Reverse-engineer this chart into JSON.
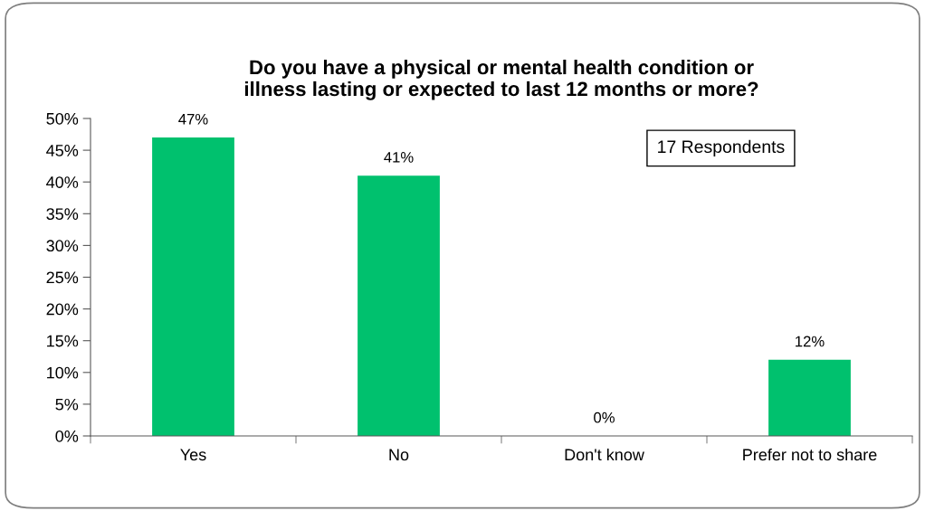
{
  "chart_data": {
    "type": "bar",
    "title": "Do you have a physical or mental health condition or\nillness lasting or expected to last 12 months or more?",
    "categories": [
      "Yes",
      "No",
      "Don't know",
      "Prefer not to share"
    ],
    "values": [
      47,
      41,
      0,
      12
    ],
    "value_labels": [
      "47%",
      "41%",
      "0%",
      "12%"
    ],
    "color": "#00c16e",
    "ylim": [
      0,
      50
    ],
    "yticks": [
      {
        "value": 0,
        "label": "0%"
      },
      {
        "value": 5,
        "label": "5%"
      },
      {
        "value": 10,
        "label": "10%"
      },
      {
        "value": 15,
        "label": "15%"
      },
      {
        "value": 20,
        "label": "20%"
      },
      {
        "value": 25,
        "label": "25%"
      },
      {
        "value": 30,
        "label": "30%"
      },
      {
        "value": 35,
        "label": "35%"
      },
      {
        "value": 40,
        "label": "40%"
      },
      {
        "value": 45,
        "label": "45%"
      },
      {
        "value": 50,
        "label": "50%"
      }
    ],
    "annotations": [
      "17 Respondents"
    ],
    "grid": false,
    "legend": false
  }
}
